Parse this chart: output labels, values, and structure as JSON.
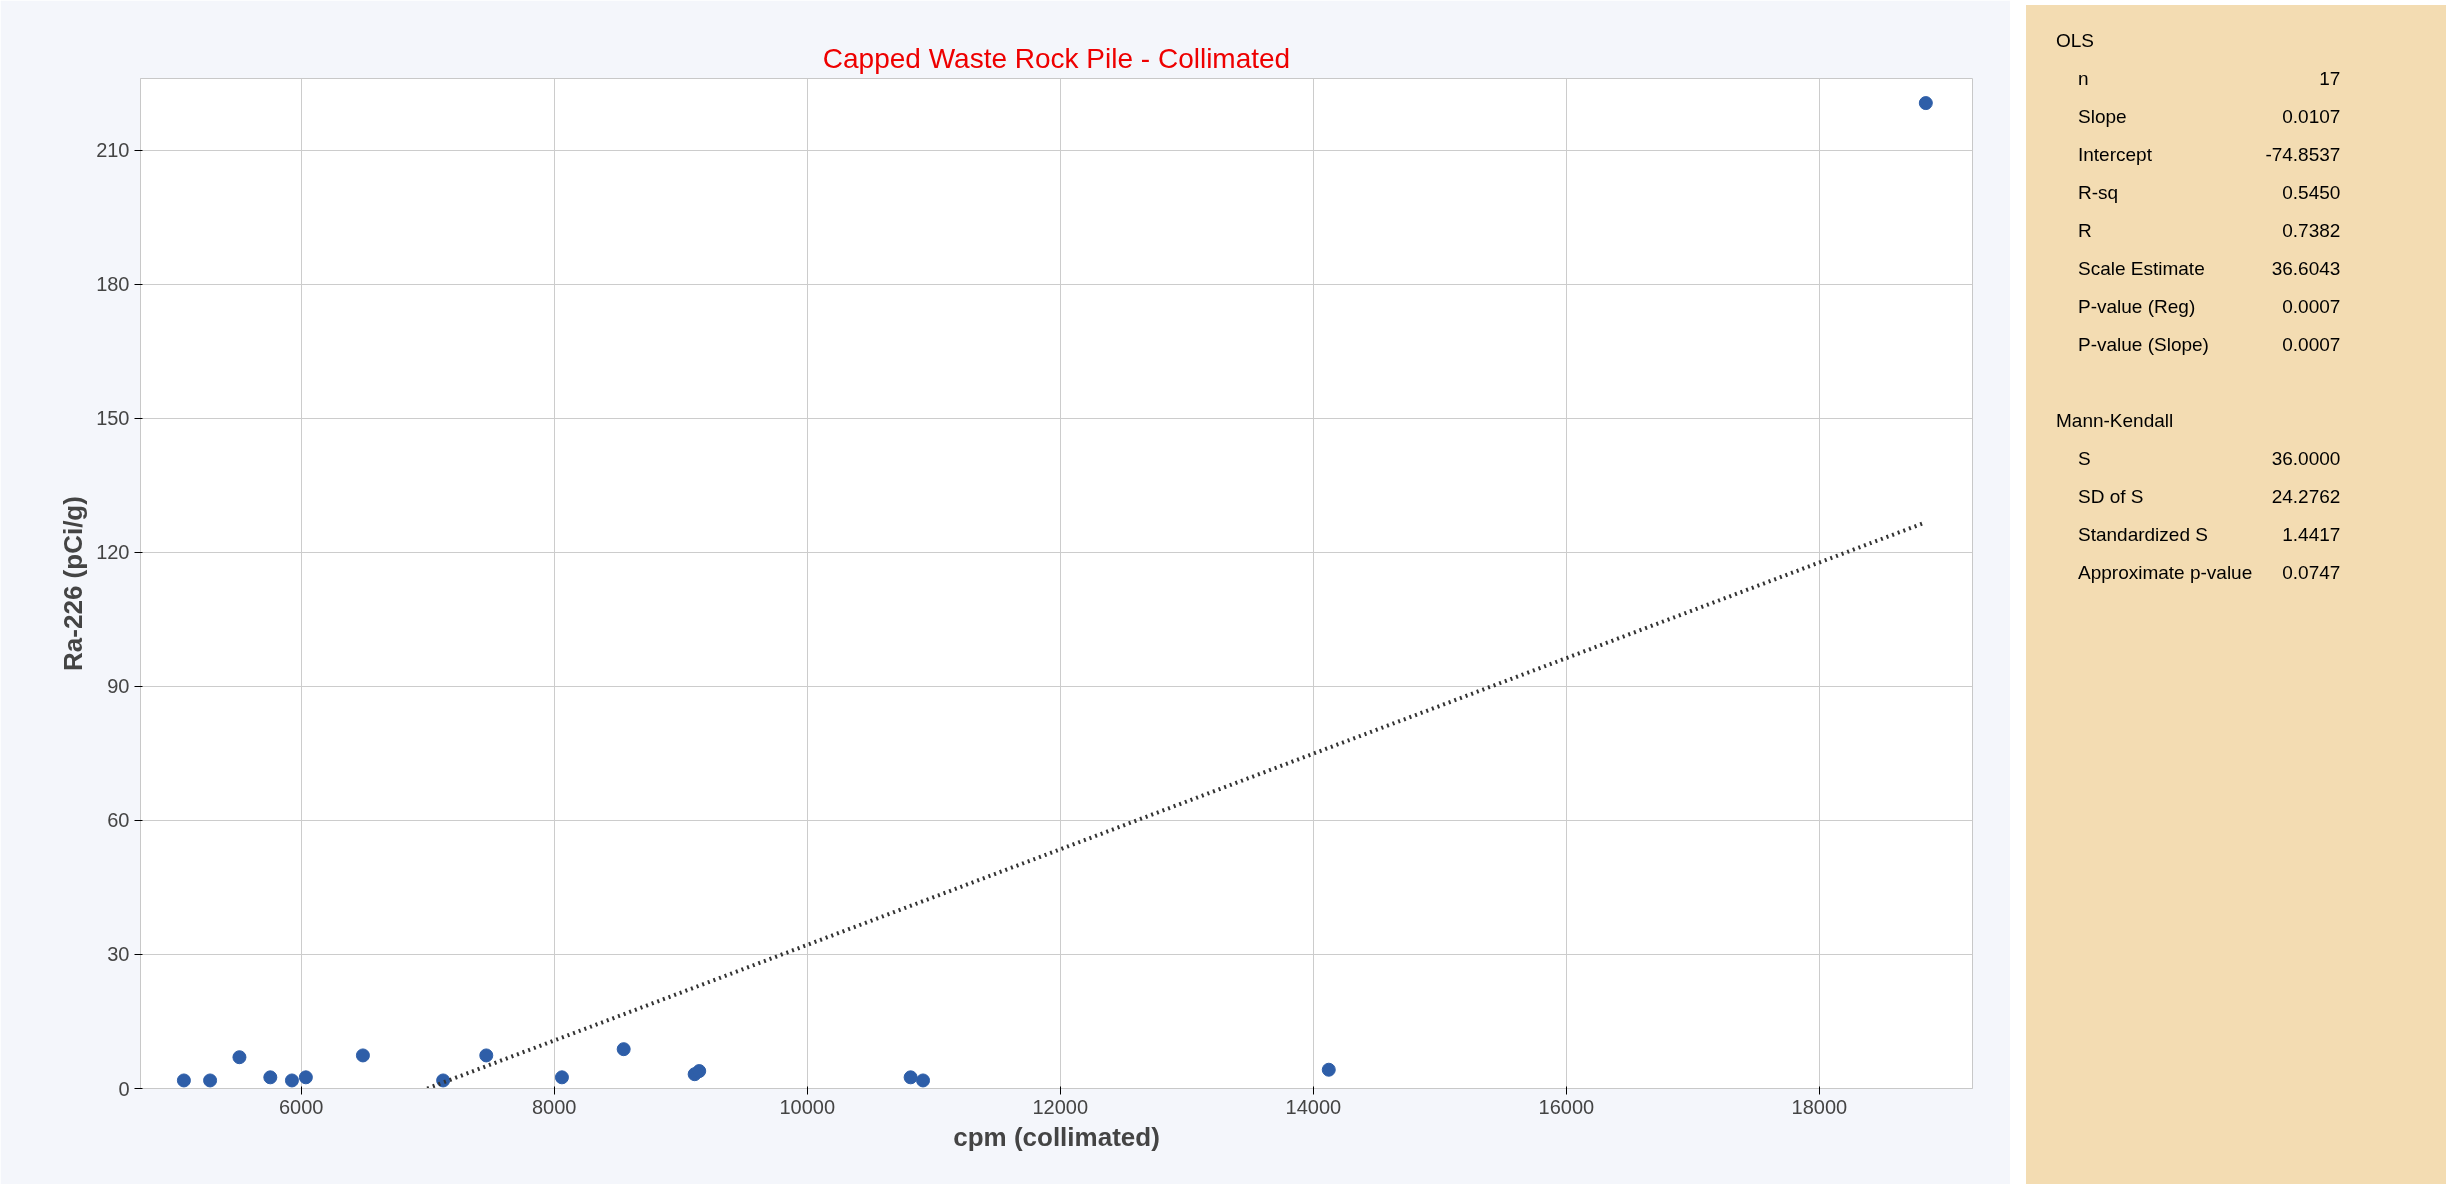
{
  "chart_data": {
    "type": "scatter",
    "title": "Capped Waste Rock Pile - Collimated",
    "xlabel": "cpm (collimated)",
    "ylabel": "Ra-226 (pCi/g)",
    "xlim": [
      4730,
      19210
    ],
    "ylim": [
      0,
      226
    ],
    "xticks": [
      6000,
      8000,
      10000,
      12000,
      14000,
      16000,
      18000
    ],
    "yticks": [
      0,
      30,
      60,
      90,
      120,
      150,
      180,
      210
    ],
    "grid": true,
    "series": [
      {
        "marker": "circle",
        "color": "#2e5ea8",
        "x": [
          5073,
          5280,
          5512,
          5756,
          5927,
          6037,
          6488,
          7122,
          7463,
          8061,
          8549,
          9110,
          9146,
          10817,
          10915,
          14122,
          18841
        ],
        "values": [
          1.8,
          1.8,
          7.0,
          2.5,
          1.8,
          2.5,
          7.4,
          1.8,
          7.4,
          2.5,
          8.8,
          3.2,
          3.9,
          2.5,
          1.8,
          4.2,
          220.5
        ]
      },
      {
        "type": "line",
        "color": "#333333",
        "line_style": "dotted",
        "x": [
          6996,
          18841
        ],
        "values": [
          0,
          126.7
        ]
      }
    ],
    "annotations": [
      "OLS",
      "n\t17",
      "Slope\t0.0107",
      "Intercept\t-74.8537",
      "R-sq\t0.5450",
      "R\t0.7382",
      "Scale Estimate\t36.6043",
      "P-value (Reg)\t0.0007",
      "P-value (Slope)\t0.0007",
      "Mann-Kendall",
      "S\t36.0000",
      "SD of S\t24.2762",
      "Standardized S\t1.4417",
      "Approximate p-value\t0.0747"
    ]
  }
}
